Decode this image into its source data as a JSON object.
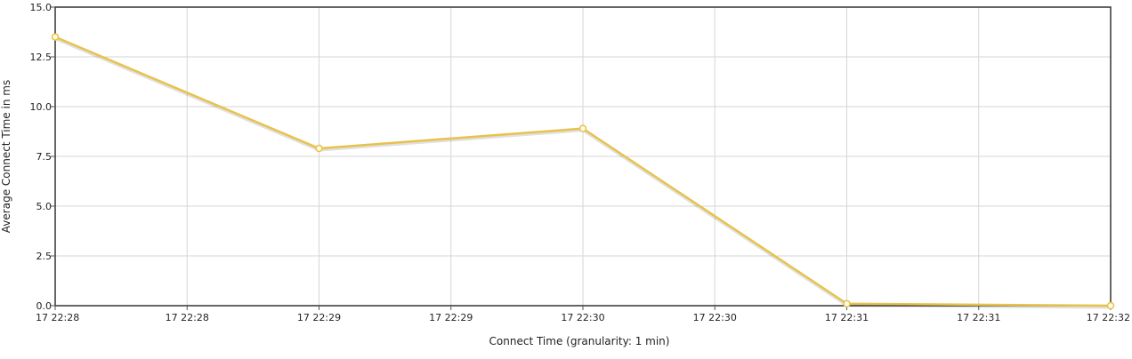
{
  "chart_data": {
    "type": "line",
    "xlabel": "Connect Time (granularity: 1 min)",
    "ylabel": "Average Connect Time in ms",
    "ylim": [
      0,
      15
    ],
    "y_ticks": [
      "0.0",
      "2.5",
      "5.0",
      "7.5",
      "10.0",
      "12.5",
      "15.0"
    ],
    "y_tick_values": [
      0,
      2.5,
      5,
      7.5,
      10,
      12.5,
      15
    ],
    "x_tick_labels": [
      "17 22:28",
      "17 22:28",
      "17 22:29",
      "17 22:29",
      "17 22:30",
      "17 22:30",
      "17 22:31",
      "17 22:31",
      "17 22:32"
    ],
    "grid": true,
    "legend": "none",
    "series": [
      {
        "color": "#e8c24a",
        "x": [
          "17 22:28",
          "17 22:29",
          "17 22:30",
          "17 22:31",
          "17 22:32"
        ],
        "values": [
          13.5,
          7.9,
          8.9,
          0.1,
          0.0
        ]
      }
    ]
  }
}
